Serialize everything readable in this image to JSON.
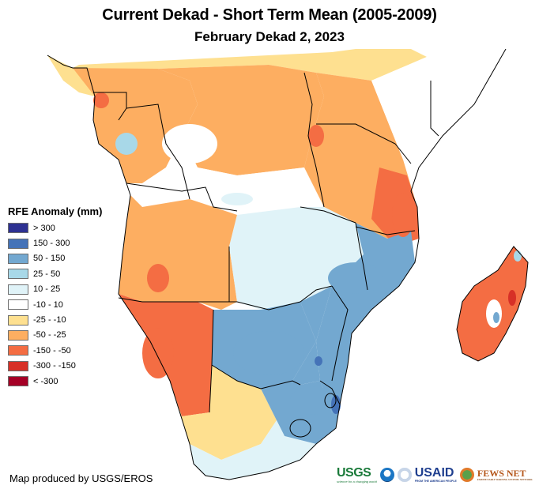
{
  "title": "Current Dekad - Short Term Mean (2005-2009)",
  "subtitle": "February Dekad 2, 2023",
  "legend": {
    "title": "RFE Anomaly (mm)",
    "classes": [
      {
        "label": "> 300",
        "color": "#2e3192"
      },
      {
        "label": "150 - 300",
        "color": "#4573b8"
      },
      {
        "label": "50 - 150",
        "color": "#73a8d0"
      },
      {
        "label": "25 - 50",
        "color": "#a8d8e8"
      },
      {
        "label": "10 - 25",
        "color": "#e0f3f8"
      },
      {
        "label": "-10 - 10",
        "color": "#ffffff"
      },
      {
        "label": "-25 - -10",
        "color": "#fee090"
      },
      {
        "label": "-50 - -25",
        "color": "#fdae61"
      },
      {
        "label": "-150 - -50",
        "color": "#f46d43"
      },
      {
        "label": "-300 - -150",
        "color": "#d73027"
      },
      {
        "label": "< -300",
        "color": "#a50026"
      }
    ]
  },
  "credit": "Map produced by USGS/EROS",
  "logos": {
    "usgs": {
      "name": "USGS",
      "tagline": "science for a changing world"
    },
    "noaa": {
      "name": "NOAA"
    },
    "usaid": {
      "name": "USAID",
      "tagline": "FROM THE AMERICAN PEOPLE"
    },
    "fews": {
      "name": "FEWS NET",
      "tagline": "FAMINE EARLY WARNING SYSTEMS NETWORK"
    }
  },
  "map": {
    "region": "Southern and Central Africa",
    "border_color": "#000000",
    "regions": [
      {
        "name": "west-africa-coast",
        "class": "-25 - -10"
      },
      {
        "name": "gabon-congo",
        "class": "-50 - -25"
      },
      {
        "name": "drc-north",
        "class": "-50 - -25"
      },
      {
        "name": "drc-central",
        "class": "-10 - 10"
      },
      {
        "name": "angola",
        "class": "-50 - -25"
      },
      {
        "name": "namibia",
        "class": "-150 - -50"
      },
      {
        "name": "zambia",
        "class": "10 - 25"
      },
      {
        "name": "botswana",
        "class": "50 - 150"
      },
      {
        "name": "zimbabwe",
        "class": "50 - 150"
      },
      {
        "name": "mozambique",
        "class": "50 - 150"
      },
      {
        "name": "tanzania",
        "class": "-50 - -25"
      },
      {
        "name": "tanzania-coast",
        "class": "-150 - -50"
      },
      {
        "name": "south-africa-west",
        "class": "-25 - -10"
      },
      {
        "name": "south-africa-east",
        "class": "50 - 150"
      },
      {
        "name": "south-africa-south",
        "class": "10 - 25"
      },
      {
        "name": "madagascar",
        "class": "-150 - -50"
      }
    ]
  }
}
